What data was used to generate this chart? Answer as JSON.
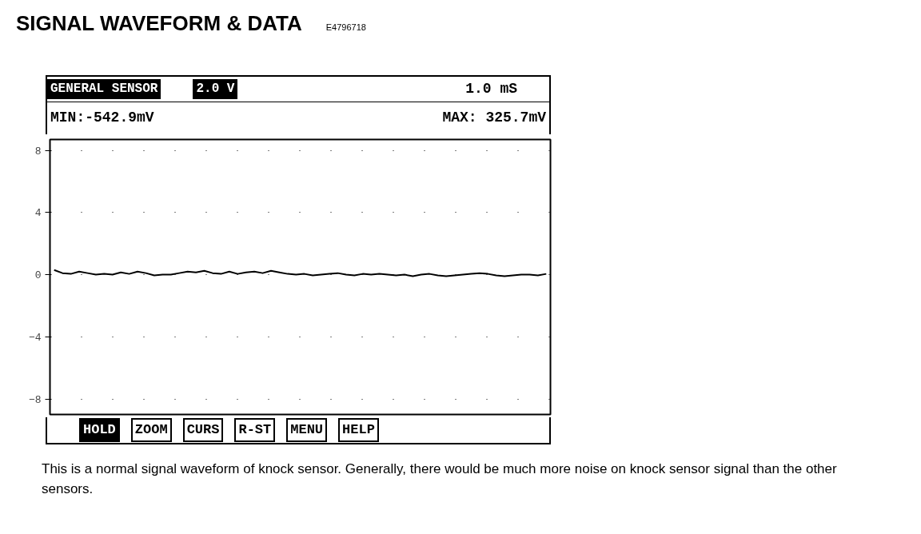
{
  "chart_data": {
    "type": "line",
    "title": "SIGNAL WAVEFORM & DATA",
    "subtitle": "E4796718",
    "annotations": [
      "GENERAL SENSOR",
      "2.0 V",
      "1.0 mS",
      "MIN:-542.9mV",
      "MAX: 325.7mV",
      "HOLD",
      "ZOOM",
      "CURS",
      "R-ST",
      "MENU",
      "HELP",
      "This is a normal signal waveform of knock sensor. Generally, there would be much more noise on knock sensor signal than the other sensors."
    ],
    "categories": [
      null,
      null,
      null,
      null,
      null,
      null,
      null,
      null,
      null,
      null,
      null,
      null,
      null,
      null,
      null,
      null,
      null,
      null,
      null,
      null,
      null,
      null,
      null,
      null,
      null,
      null,
      null,
      null,
      null,
      null,
      null,
      null,
      null,
      null,
      null,
      null,
      null,
      null,
      null,
      null,
      null,
      null,
      null,
      null,
      null,
      null,
      null,
      null,
      null,
      null,
      null,
      null,
      null,
      null,
      null,
      null,
      null,
      null,
      null,
      null
    ],
    "series": [
      {
        "color": "#000000",
        "values": [
          0.3,
          0.1,
          0.05,
          0.2,
          0.1,
          0.0,
          0.05,
          0.0,
          0.15,
          0.05,
          0.2,
          0.1,
          -0.05,
          0.0,
          0.0,
          0.1,
          0.2,
          0.15,
          0.25,
          0.1,
          0.05,
          0.2,
          0.05,
          0.15,
          0.2,
          0.1,
          0.25,
          0.15,
          0.05,
          0.0,
          0.05,
          -0.05,
          0.0,
          0.05,
          0.1,
          0.0,
          -0.05,
          0.05,
          0.0,
          0.05,
          0.0,
          -0.05,
          0.0,
          -0.1,
          0.0,
          0.05,
          -0.05,
          -0.1,
          -0.05,
          0.0,
          0.05,
          0.1,
          0.05,
          -0.05,
          -0.1,
          -0.05,
          0.0,
          0.0,
          -0.05,
          0.05
        ]
      }
    ],
    "ylim": [
      -9,
      8.7
    ],
    "yticks": [
      8,
      4,
      0,
      -4,
      -8
    ],
    "grid": true,
    "tick_labels": "y",
    "line_style": "solid",
    "marker": "none"
  }
}
